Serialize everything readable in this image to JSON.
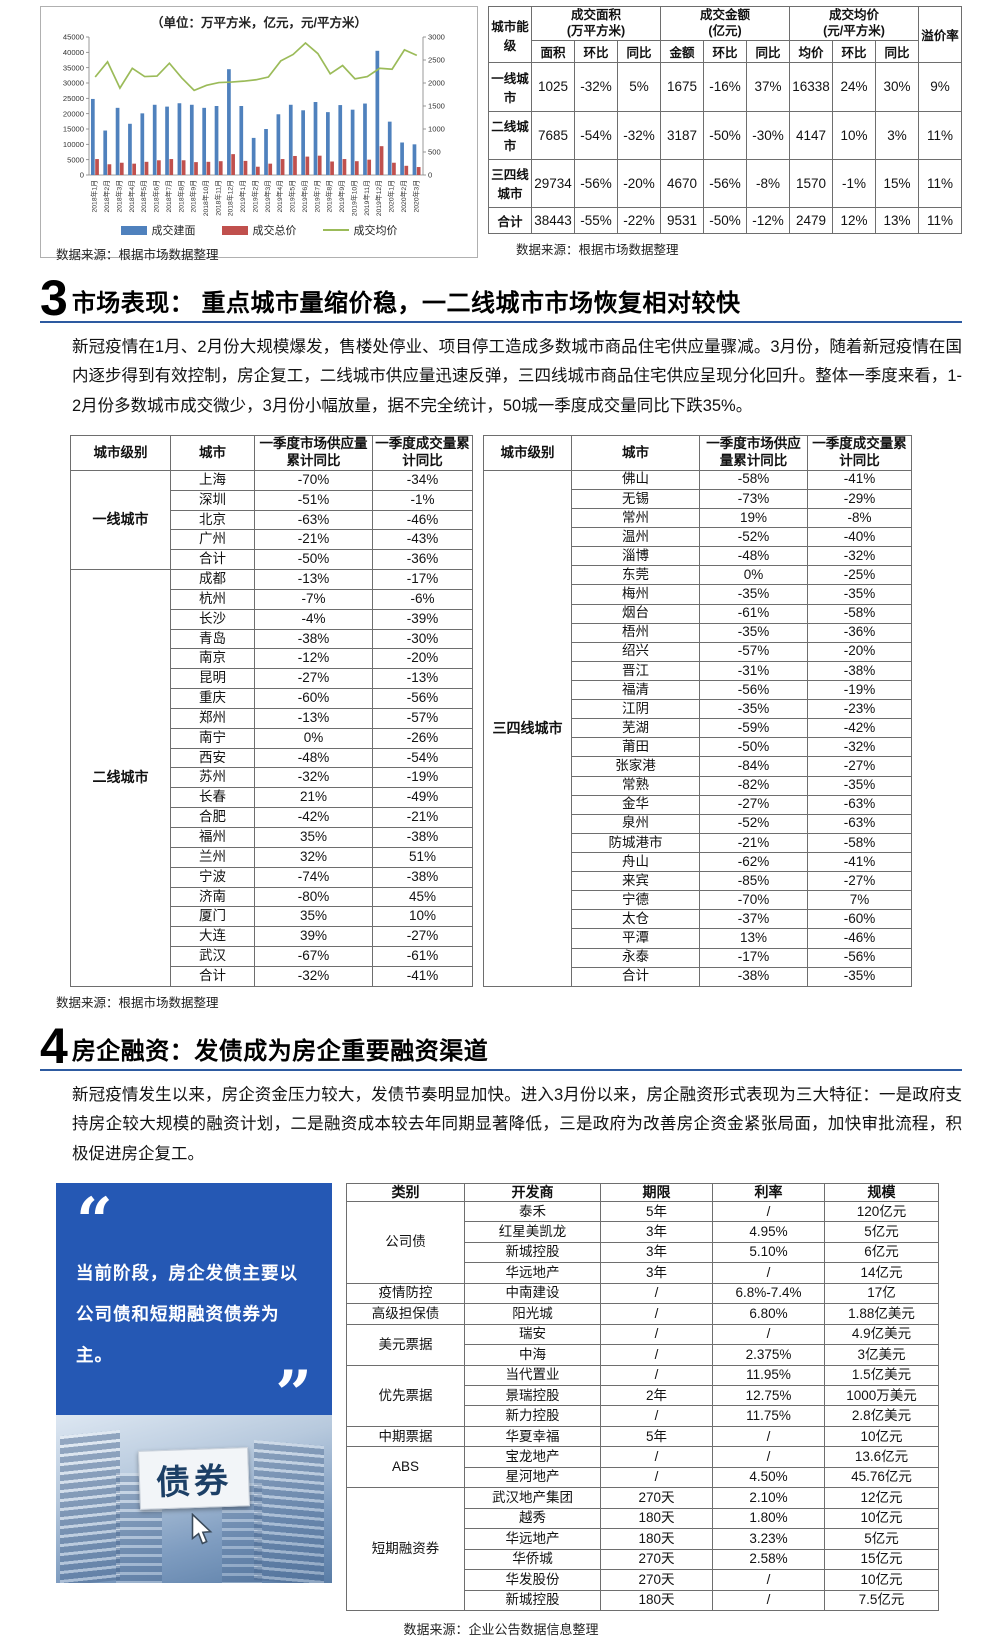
{
  "sources": {
    "market": "数据来源：根据市场数据整理",
    "corp": "数据来源：企业公告数据信息整理"
  },
  "chart_data": {
    "type": "bar",
    "title": "（单位：万平方米，亿元，元/平方米）",
    "categories": [
      "2018年1月",
      "2018年2月",
      "2018年3月",
      "2018年4月",
      "2018年5月",
      "2018年6月",
      "2018年7月",
      "2018年8月",
      "2018年9月",
      "2018年10月",
      "2018年11月",
      "2018年12月",
      "2019年1月",
      "2019年2月",
      "2019年3月",
      "2019年4月",
      "2019年5月",
      "2019年6月",
      "2019年7月",
      "2019年8月",
      "2019年9月",
      "2019年10月",
      "2019年11月",
      "2019年12月",
      "2020年1月",
      "2020年2月",
      "2020年3月"
    ],
    "series": [
      {
        "name": "成交建面",
        "type": "bar",
        "axis": "left",
        "color": "#4f81bd",
        "values": [
          24800,
          14500,
          21900,
          16700,
          20100,
          22900,
          22300,
          23400,
          22900,
          21900,
          22500,
          34500,
          22500,
          12100,
          15000,
          19800,
          22900,
          21100,
          23800,
          20500,
          22800,
          21300,
          23300,
          40500,
          17400,
          10600,
          10000
        ]
      },
      {
        "name": "成交总价",
        "type": "bar",
        "axis": "left",
        "color": "#c0504d",
        "values": [
          5200,
          3500,
          4000,
          3700,
          4300,
          4800,
          5200,
          4800,
          4200,
          4300,
          4500,
          6800,
          4600,
          2700,
          3700,
          5200,
          6200,
          6000,
          6300,
          4400,
          5200,
          4500,
          5000,
          9400,
          4000,
          3000,
          2600
        ]
      },
      {
        "name": "成交均价",
        "type": "line",
        "axis": "right",
        "color": "#9bbb59",
        "values": [
          2130,
          2460,
          1890,
          2320,
          2140,
          2150,
          2430,
          2110,
          1840,
          1950,
          2010,
          2020,
          2040,
          2070,
          2130,
          2480,
          2620,
          2870,
          2640,
          2200,
          2380,
          2090,
          2140,
          2320,
          2300,
          2720,
          2600
        ]
      }
    ],
    "left_axis": {
      "min": 0,
      "max": 45000,
      "step": 5000
    },
    "right_axis": {
      "min": 0,
      "max": 3000,
      "step": 500
    },
    "legend_position": "bottom",
    "grid": false
  },
  "tier_table": {
    "col_city_tier": "城市能级",
    "premium_col": "溢价率",
    "groups": [
      {
        "label": "成交面积",
        "unit": "(万平方米)",
        "cols": [
          "面积",
          "环比",
          "同比"
        ]
      },
      {
        "label": "成交金额",
        "unit": "(亿元)",
        "cols": [
          "金额",
          "环比",
          "同比"
        ]
      },
      {
        "label": "成交均价",
        "unit": "(元/平方米)",
        "cols": [
          "均价",
          "环比",
          "同比"
        ]
      }
    ],
    "rows": [
      {
        "tier": "一线城市",
        "values": [
          "1025",
          "-32%",
          "5%",
          "1675",
          "-16%",
          "37%",
          "16338",
          "24%",
          "30%",
          "9%"
        ]
      },
      {
        "tier": "二线城市",
        "values": [
          "7685",
          "-54%",
          "-32%",
          "3187",
          "-50%",
          "-30%",
          "4147",
          "10%",
          "3%",
          "11%"
        ]
      },
      {
        "tier": "三四线城市",
        "values": [
          "29734",
          "-56%",
          "-20%",
          "4670",
          "-56%",
          "-8%",
          "1570",
          "-1%",
          "15%",
          "11%"
        ]
      },
      {
        "tier": "合计",
        "values": [
          "38443",
          "-55%",
          "-22%",
          "9531",
          "-50%",
          "-12%",
          "2479",
          "12%",
          "13%",
          "11%"
        ]
      }
    ]
  },
  "section3": {
    "number": "3",
    "title": "市场表现： 重点城市量缩价稳，一二线城市市场恢复相对较快",
    "paragraph": "新冠疫情在1月、2月份大规模爆发，售楼处停业、项目停工造成多数城市商品住宅供应量骤减。3月份，随着新冠疫情在国内逐步得到有效控制，房企复工，二线城市供应量迅速反弹，三四线城市商品住宅供应呈现分化回升。整体一季度来看，1-2月份多数城市成交微少，3月份小幅放量，据不完全统计，50城一季度成交量同比下跌35%。"
  },
  "city_table": {
    "headers": [
      "城市级别",
      "城市",
      "一季度市场供应量累计同比",
      "一季度成交量累计同比"
    ],
    "left_groups": [
      {
        "tier": "一线城市",
        "rows": [
          [
            "上海",
            "-70%",
            "-34%"
          ],
          [
            "深圳",
            "-51%",
            "-1%"
          ],
          [
            "北京",
            "-63%",
            "-46%"
          ],
          [
            "广州",
            "-21%",
            "-43%"
          ],
          [
            "合计",
            "-50%",
            "-36%"
          ]
        ]
      },
      {
        "tier": "二线城市",
        "rows": [
          [
            "成都",
            "-13%",
            "-17%"
          ],
          [
            "杭州",
            "-7%",
            "-6%"
          ],
          [
            "长沙",
            "-4%",
            "-39%"
          ],
          [
            "青岛",
            "-38%",
            "-30%"
          ],
          [
            "南京",
            "-12%",
            "-20%"
          ],
          [
            "昆明",
            "-27%",
            "-13%"
          ],
          [
            "重庆",
            "-60%",
            "-56%"
          ],
          [
            "郑州",
            "-13%",
            "-57%"
          ],
          [
            "南宁",
            "0%",
            "-26%"
          ],
          [
            "西安",
            "-48%",
            "-54%"
          ],
          [
            "苏州",
            "-32%",
            "-19%"
          ],
          [
            "长春",
            "21%",
            "-49%"
          ],
          [
            "合肥",
            "-42%",
            "-21%"
          ],
          [
            "福州",
            "35%",
            "-38%"
          ],
          [
            "兰州",
            "32%",
            "51%"
          ],
          [
            "宁波",
            "-74%",
            "-38%"
          ],
          [
            "济南",
            "-80%",
            "45%"
          ],
          [
            "厦门",
            "35%",
            "10%"
          ],
          [
            "大连",
            "39%",
            "-27%"
          ],
          [
            "武汉",
            "-67%",
            "-61%"
          ],
          [
            "合计",
            "-32%",
            "-41%"
          ]
        ]
      }
    ],
    "right_groups": [
      {
        "tier": "三四线城市",
        "rows": [
          [
            "佛山",
            "-58%",
            "-41%"
          ],
          [
            "无锡",
            "-73%",
            "-29%"
          ],
          [
            "常州",
            "19%",
            "-8%"
          ],
          [
            "温州",
            "-52%",
            "-40%"
          ],
          [
            "淄博",
            "-48%",
            "-32%"
          ],
          [
            "东莞",
            "0%",
            "-25%"
          ],
          [
            "梅州",
            "-35%",
            "-35%"
          ],
          [
            "烟台",
            "-61%",
            "-58%"
          ],
          [
            "梧州",
            "-35%",
            "-36%"
          ],
          [
            "绍兴",
            "-57%",
            "-20%"
          ],
          [
            "晋江",
            "-31%",
            "-38%"
          ],
          [
            "福清",
            "-56%",
            "-19%"
          ],
          [
            "江阴",
            "-35%",
            "-23%"
          ],
          [
            "芜湖",
            "-59%",
            "-42%"
          ],
          [
            "莆田",
            "-50%",
            "-32%"
          ],
          [
            "张家港",
            "-84%",
            "-27%"
          ],
          [
            "常熟",
            "-82%",
            "-35%"
          ],
          [
            "金华",
            "-27%",
            "-63%"
          ],
          [
            "泉州",
            "-52%",
            "-63%"
          ],
          [
            "防城港市",
            "-21%",
            "-58%"
          ],
          [
            "舟山",
            "-62%",
            "-41%"
          ],
          [
            "来宾",
            "-85%",
            "-27%"
          ],
          [
            "宁德",
            "-70%",
            "7%"
          ],
          [
            "太仓",
            "-37%",
            "-60%"
          ],
          [
            "平潭",
            "13%",
            "-46%"
          ],
          [
            "永泰",
            "-17%",
            "-56%"
          ],
          [
            "合计",
            "-38%",
            "-35%"
          ]
        ]
      }
    ]
  },
  "section4": {
    "number": "4",
    "title": "房企融资：发债成为房企重要融资渠道",
    "paragraph": "新冠疫情发生以来，房企资金压力较大，发债节奏明显加快。进入3月份以来，房企融资形式表现为三大特征：一是政府支持房企较大规模的融资计划，二是融资成本较去年同期显著降低，三是政府为改善房企资金紧张局面，加快审批流程，积极促进房企复工。",
    "quote": {
      "open_quote": "“",
      "close_quote": "”",
      "text": "当前阶段，房企发债主要以公司债和短期融资债券为主。",
      "photo_sign": "债券",
      "box_color": "#2558b4"
    },
    "financing_table": {
      "headers": [
        "类别",
        "开发商",
        "期限",
        "利率",
        "规模"
      ],
      "groups": [
        {
          "category": "公司债",
          "rows": [
            [
              "泰禾",
              "5年",
              "/",
              "120亿元"
            ],
            [
              "红星美凯龙",
              "3年",
              "4.95%",
              "5亿元"
            ],
            [
              "新城控股",
              "3年",
              "5.10%",
              "6亿元"
            ],
            [
              "华远地产",
              "3年",
              "/",
              "14亿元"
            ]
          ]
        },
        {
          "category": "疫情防控",
          "rows": [
            [
              "中南建设",
              "/",
              "6.8%-7.4%",
              "17亿"
            ]
          ]
        },
        {
          "category": "高级担保债",
          "rows": [
            [
              "阳光城",
              "/",
              "6.80%",
              "1.88亿美元"
            ]
          ]
        },
        {
          "category": "美元票据",
          "rows": [
            [
              "瑞安",
              "/",
              "/",
              "4.9亿美元"
            ],
            [
              "中海",
              "/",
              "2.375%",
              "3亿美元"
            ]
          ]
        },
        {
          "category": "优先票据",
          "rows": [
            [
              "当代置业",
              "/",
              "11.95%",
              "1.5亿美元"
            ],
            [
              "景瑞控股",
              "2年",
              "12.75%",
              "1000万美元"
            ],
            [
              "新力控股",
              "/",
              "11.75%",
              "2.8亿美元"
            ]
          ]
        },
        {
          "category": "中期票据",
          "rows": [
            [
              "华夏幸福",
              "5年",
              "/",
              "10亿元"
            ]
          ]
        },
        {
          "category": "ABS",
          "rows": [
            [
              "宝龙地产",
              "/",
              "/",
              "13.6亿元"
            ],
            [
              "星河地产",
              "/",
              "4.50%",
              "45.76亿元"
            ]
          ]
        },
        {
          "category": "短期融资券",
          "rows": [
            [
              "武汉地产集团",
              "270天",
              "2.10%",
              "12亿元"
            ],
            [
              "越秀",
              "180天",
              "1.80%",
              "10亿元"
            ],
            [
              "华远地产",
              "180天",
              "3.23%",
              "5亿元"
            ],
            [
              "华侨城",
              "270天",
              "2.58%",
              "15亿元"
            ],
            [
              "华发股份",
              "270天",
              "/",
              "10亿元"
            ],
            [
              "新城控股",
              "180天",
              "/",
              "7.5亿元"
            ]
          ]
        }
      ]
    }
  }
}
